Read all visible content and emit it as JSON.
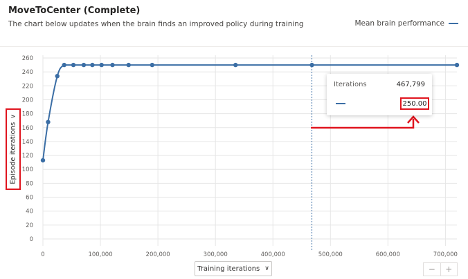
{
  "header": {
    "title": "MoveToCenter (Complete)",
    "subtitle": "The chart below updates when the brain finds an improved policy during training",
    "legend_label": "Mean brain performance"
  },
  "controls": {
    "y_axis_label": "Episode iterations",
    "x_axis_label": "Training iterations",
    "chevron": "∨",
    "zoom_out": "−",
    "zoom_in": "+"
  },
  "tooltip": {
    "key": "Iterations",
    "iterations_value": "467,799",
    "series_value": "250.00"
  },
  "colors": {
    "series": "#3b6ea5",
    "annotation": "#e0141e",
    "grid": "#e6e6e6"
  },
  "chart_data": {
    "type": "line",
    "xlabel": "Training iterations",
    "ylabel": "Episode iterations",
    "xlim": [
      0,
      720000
    ],
    "ylim": [
      0,
      260
    ],
    "x_ticks": [
      "0",
      "100,000",
      "200,000",
      "300,000",
      "400,000",
      "500,000",
      "600,000",
      "700,000"
    ],
    "y_ticks": [
      "0",
      "20",
      "40",
      "60",
      "80",
      "100",
      "120",
      "140",
      "160",
      "180",
      "200",
      "220",
      "240",
      "260"
    ],
    "series": [
      {
        "name": "Mean brain performance",
        "x": [
          0,
          9000,
          25000,
          37000,
          53000,
          71000,
          86000,
          102000,
          121000,
          149000,
          190000,
          335000,
          467799,
          720000
        ],
        "y": [
          113,
          168,
          234,
          250,
          250,
          250,
          250,
          250,
          250,
          250,
          250,
          250,
          250,
          250
        ]
      }
    ],
    "hover_x": 467799,
    "grid": true,
    "legend_position": "top-right"
  }
}
